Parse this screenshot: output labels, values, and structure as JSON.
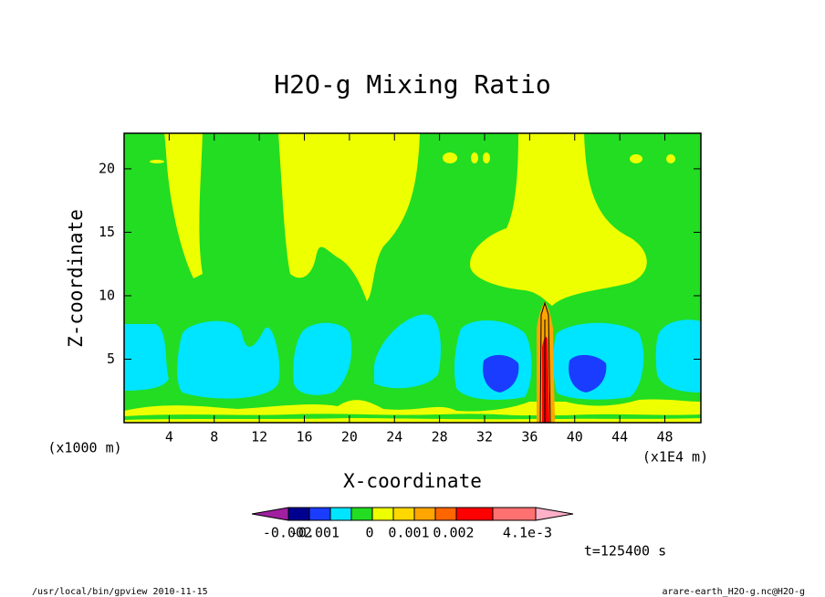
{
  "chart_data": {
    "type": "contour",
    "title": "H2O-g Mixing Ratio",
    "x_label": "X-coordinate",
    "y_label": "Z-coordinate",
    "x_unit": "(x1E4 m)",
    "y_unit": "(x1000 m)",
    "xlim": [
      0,
      51.2
    ],
    "ylim": [
      0,
      22.8
    ],
    "xticks": [
      4,
      8,
      12,
      16,
      20,
      24,
      28,
      32,
      36,
      40,
      44,
      48
    ],
    "yticks": [
      5,
      10,
      15,
      20
    ],
    "colorbar": {
      "colors": [
        "#a020a0",
        "#000090",
        "#1a3cff",
        "#00e5ff",
        "#22dd22",
        "#eeff00",
        "#ffd800",
        "#ffa500",
        "#ff6600",
        "#ff0000",
        "#ff7070",
        "#ffb0c8"
      ],
      "ticks": [
        -0.002,
        -0.001,
        0,
        0.001,
        0.002,
        {
          "value": 0.0041,
          "label": "4.1e-3"
        }
      ]
    },
    "time_label": "t=125400 s",
    "footer_left": "/usr/local/bin/gpview  2010-11-15",
    "footer_right": "arare-earth_H2O-g.nc@H2O-g"
  }
}
